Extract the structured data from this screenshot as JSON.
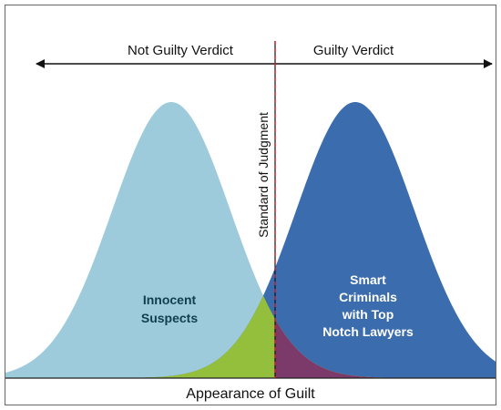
{
  "left_verdict": "Not Guilty Verdict",
  "right_verdict": "Guilty Verdict",
  "threshold_label": "Standard of Judgment",
  "left_curve_label": [
    "Innocent",
    "Suspects"
  ],
  "right_curve_label": [
    "Smart",
    "Criminals",
    "with Top",
    "Notch Lawyers"
  ],
  "x_axis_label": "Appearance of Guilt"
}
